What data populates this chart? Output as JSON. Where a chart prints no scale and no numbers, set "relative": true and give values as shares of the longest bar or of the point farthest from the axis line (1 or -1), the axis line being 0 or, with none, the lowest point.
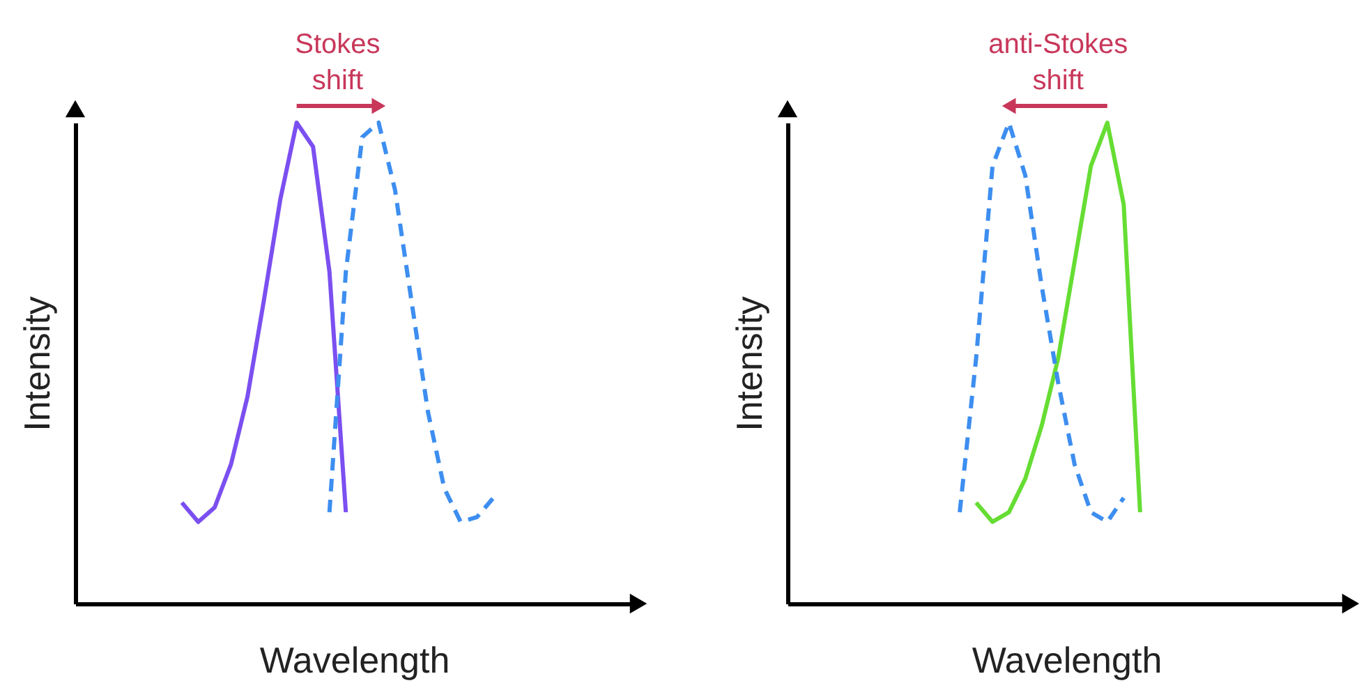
{
  "chart_data": [
    {
      "type": "line",
      "relative": true,
      "xlabel": "Wavelength",
      "ylabel": "Intensity",
      "annotations": [
        "Stokes shift"
      ],
      "categories": [
        null,
        null,
        null,
        null,
        null,
        null,
        null,
        null,
        null,
        null,
        null,
        null,
        null,
        null,
        null,
        null,
        null,
        null,
        null,
        null,
        null,
        null,
        null,
        null,
        null,
        null,
        null,
        null,
        null,
        null,
        null,
        null,
        null,
        null
      ],
      "series": [
        {
          "color": "#7b4ff0",
          "line_style": "solid",
          "values": [
            null,
            null,
            null,
            null,
            null,
            null,
            0.21,
            0.17,
            0.2,
            0.29,
            0.43,
            0.63,
            0.84,
            1.0,
            0.95,
            0.69,
            0.19,
            null,
            null,
            null,
            null,
            null,
            null,
            null,
            null,
            null,
            null,
            null,
            null,
            null,
            null,
            null,
            null,
            null
          ]
        },
        {
          "color": "#3d8ef0",
          "line_style": "dashed",
          "values": [
            null,
            null,
            null,
            null,
            null,
            null,
            null,
            null,
            null,
            null,
            null,
            null,
            null,
            null,
            null,
            0.19,
            0.69,
            0.97,
            1.0,
            0.86,
            0.63,
            0.4,
            0.24,
            0.17,
            0.18,
            0.22,
            null,
            null,
            null,
            null,
            null,
            null,
            null,
            null
          ]
        }
      ]
    },
    {
      "type": "line",
      "relative": true,
      "xlabel": "Wavelength",
      "ylabel": "Intensity",
      "annotations": [
        "anti-Stokes shift"
      ],
      "categories": [
        null,
        null,
        null,
        null,
        null,
        null,
        null,
        null,
        null,
        null,
        null,
        null,
        null,
        null,
        null,
        null,
        null,
        null,
        null,
        null,
        null,
        null,
        null,
        null,
        null,
        null,
        null,
        null,
        null,
        null,
        null,
        null,
        null,
        null
      ],
      "series": [
        {
          "color": "#66dd33",
          "line_style": "solid",
          "values": [
            null,
            null,
            null,
            null,
            null,
            null,
            null,
            null,
            null,
            null,
            null,
            0.21,
            0.17,
            0.19,
            0.26,
            0.37,
            0.51,
            0.71,
            0.91,
            1.0,
            0.83,
            0.19,
            null,
            null,
            null,
            null,
            null,
            null,
            null,
            null,
            null,
            null,
            null,
            null
          ]
        },
        {
          "color": "#3d8ef0",
          "line_style": "dashed",
          "values": [
            null,
            null,
            null,
            null,
            null,
            null,
            null,
            null,
            null,
            null,
            0.19,
            0.51,
            0.91,
            1.0,
            0.89,
            0.66,
            0.46,
            0.29,
            0.19,
            0.17,
            0.22,
            null,
            null,
            null,
            null,
            null,
            null,
            null,
            null,
            null,
            null,
            null,
            null,
            null
          ]
        }
      ]
    }
  ]
}
